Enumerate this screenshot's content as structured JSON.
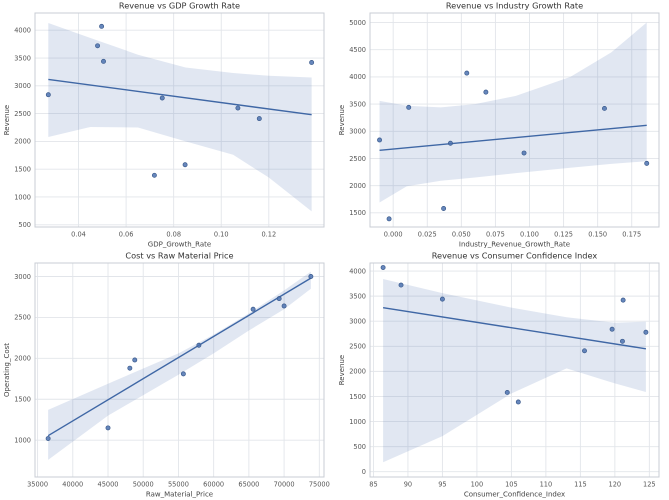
{
  "figure": {
    "background": "#ffffff",
    "rows": 2,
    "cols": 2
  },
  "style": {
    "point_fill": "#4c72b0",
    "point_edge": "#3a5a8c",
    "line_color": "#3f67a5",
    "band_color": "#4c72b0",
    "band_opacity": 0.17,
    "grid_color": "#e2e5ea",
    "spine_color": "#c9cdd4",
    "title_color": "#333333",
    "tick_color": "#555555",
    "label_color": "#444444"
  },
  "chart_data": [
    {
      "type": "scatter",
      "title": "Revenue vs GDP Growth Rate",
      "xlabel": "GDP_Growth_Rate",
      "ylabel": "Revenue",
      "xlim": [
        0.0217,
        0.1432
      ],
      "ylim": [
        460,
        4310
      ],
      "grid": true,
      "legend_position": null,
      "xtick_values": [
        0.04,
        0.06,
        0.08,
        0.1,
        0.12
      ],
      "xtick_labels": [
        "0.04",
        "0.06",
        "0.08",
        "0.10",
        "0.12"
      ],
      "ytick_values": [
        500,
        1000,
        1500,
        2000,
        2500,
        3000,
        3500,
        4000
      ],
      "ytick_labels": [
        "500",
        "1000",
        "1500",
        "2000",
        "2500",
        "3000",
        "3500",
        "4000"
      ],
      "points": [
        [
          0.0273,
          2840
        ],
        [
          0.0497,
          4070
        ],
        [
          0.048,
          3720
        ],
        [
          0.0505,
          3440
        ],
        [
          0.0752,
          2780
        ],
        [
          0.0719,
          1390
        ],
        [
          0.0848,
          1580
        ],
        [
          0.107,
          2600
        ],
        [
          0.116,
          2410
        ],
        [
          0.138,
          3420
        ]
      ],
      "regression_line": {
        "x": [
          0.0273,
          0.138
        ],
        "y": [
          3115,
          2480
        ]
      },
      "ci_band": {
        "x": [
          0.0273,
          0.045,
          0.065,
          0.085,
          0.105,
          0.12,
          0.138
        ],
        "upper": [
          4130,
          3860,
          3560,
          3330,
          3230,
          3180,
          3150
        ],
        "lower": [
          2080,
          2260,
          2250,
          2000,
          1760,
          1350,
          740
        ]
      }
    },
    {
      "type": "scatter",
      "title": "Revenue vs Industry Growth Rate",
      "xlabel": "Industry_Revenue_Growth_Rate",
      "ylabel": "Revenue",
      "xlim": [
        -0.017,
        0.195
      ],
      "ylim": [
        1240,
        5175
      ],
      "grid": true,
      "legend_position": null,
      "xtick_values": [
        0.0,
        0.025,
        0.05,
        0.075,
        0.1,
        0.125,
        0.15,
        0.175
      ],
      "xtick_labels": [
        "0.000",
        "0.025",
        "0.050",
        "0.075",
        "0.100",
        "0.125",
        "0.150",
        "0.175"
      ],
      "ytick_values": [
        1500,
        2000,
        2500,
        3000,
        3500,
        4000,
        4500,
        5000
      ],
      "ytick_labels": [
        "1500",
        "2000",
        "2500",
        "3000",
        "3500",
        "4000",
        "4500",
        "5000"
      ],
      "points": [
        [
          -0.01,
          2840
        ],
        [
          -0.003,
          1390
        ],
        [
          0.0114,
          3440
        ],
        [
          0.037,
          1580
        ],
        [
          0.042,
          2780
        ],
        [
          0.054,
          4070
        ],
        [
          0.068,
          3720
        ],
        [
          0.096,
          2600
        ],
        [
          0.155,
          3420
        ],
        [
          0.186,
          2410
        ]
      ],
      "regression_line": {
        "x": [
          -0.01,
          0.186
        ],
        "y": [
          2650,
          3110
        ]
      },
      "ci_band": {
        "x": [
          -0.01,
          0.01,
          0.035,
          0.06,
          0.09,
          0.13,
          0.16,
          0.186
        ],
        "upper": [
          3560,
          3470,
          3440,
          3500,
          3650,
          4000,
          4450,
          5000
        ],
        "lower": [
          1690,
          1990,
          2090,
          2150,
          2230,
          2330,
          2400,
          2450
        ]
      }
    },
    {
      "type": "scatter",
      "title": "Cost vs Raw Material Price",
      "xlabel": "Raw_Material_Price",
      "ylabel": "Operating_Cost",
      "xlim": [
        34635,
        75665
      ],
      "ylim": [
        550,
        3165
      ],
      "grid": true,
      "legend_position": null,
      "xtick_values": [
        35000,
        40000,
        45000,
        50000,
        55000,
        60000,
        65000,
        70000,
        75000
      ],
      "xtick_labels": [
        "35000",
        "40000",
        "45000",
        "50000",
        "55000",
        "60000",
        "65000",
        "70000",
        "75000"
      ],
      "ytick_values": [
        1000,
        1500,
        2000,
        2500,
        3000
      ],
      "ytick_labels": [
        "1000",
        "1500",
        "2000",
        "2500",
        "3000"
      ],
      "points": [
        [
          36500,
          1020
        ],
        [
          45000,
          1150
        ],
        [
          48100,
          1880
        ],
        [
          48800,
          1980
        ],
        [
          55700,
          1810
        ],
        [
          57900,
          2160
        ],
        [
          65600,
          2600
        ],
        [
          69300,
          2730
        ],
        [
          70000,
          2640
        ],
        [
          73800,
          3000
        ]
      ],
      "regression_line": {
        "x": [
          36500,
          73800
        ],
        "y": [
          1055,
          2980
        ]
      },
      "ci_band": {
        "x": [
          36500,
          45000,
          55000,
          60000,
          65000,
          70000,
          73800
        ],
        "upper": [
          1370,
          1690,
          2060,
          2290,
          2550,
          2830,
          3060
        ],
        "lower": [
          760,
          1300,
          1800,
          2060,
          2340,
          2600,
          2850
        ]
      }
    },
    {
      "type": "scatter",
      "title": "Revenue vs Consumer Confidence Index",
      "xlabel": "Consumer_Confidence_Index",
      "ylabel": "Revenue",
      "xlim": [
        84.5,
        126.4
      ],
      "ylim": [
        -105,
        4160
      ],
      "grid": true,
      "legend_position": null,
      "xtick_values": [
        85,
        90,
        95,
        100,
        105,
        110,
        115,
        120,
        125
      ],
      "xtick_labels": [
        "85",
        "90",
        "95",
        "100",
        "105",
        "110",
        "115",
        "120",
        "125"
      ],
      "ytick_values": [
        0,
        500,
        1000,
        1500,
        2000,
        2500,
        3000,
        3500,
        4000
      ],
      "ytick_labels": [
        "0",
        "500",
        "1000",
        "1500",
        "2000",
        "2500",
        "3000",
        "3500",
        "4000"
      ],
      "points": [
        [
          86.4,
          4070
        ],
        [
          89.0,
          3720
        ],
        [
          95.0,
          3440
        ],
        [
          104.4,
          1580
        ],
        [
          106.0,
          1390
        ],
        [
          115.6,
          2410
        ],
        [
          119.6,
          2840
        ],
        [
          121.2,
          3420
        ],
        [
          121.1,
          2600
        ],
        [
          124.5,
          2780
        ]
      ],
      "regression_line": {
        "x": [
          86.4,
          124.5
        ],
        "y": [
          3270,
          2450
        ]
      },
      "ci_band": {
        "x": [
          86.4,
          95,
          105,
          113,
          120,
          124.5
        ],
        "upper": [
          3840,
          3560,
          3270,
          3080,
          2970,
          2990
        ],
        "lower": [
          190,
          710,
          1560,
          2060,
          1760,
          1590
        ]
      }
    }
  ]
}
